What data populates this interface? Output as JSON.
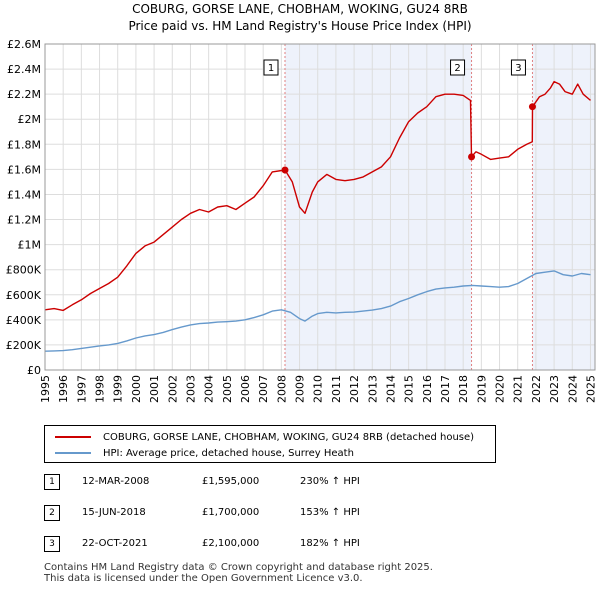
{
  "chart_data": {
    "type": "line",
    "title": "COBURG, GORSE LANE, CHOBHAM, WOKING, GU24 8RB",
    "subtitle": "Price paid vs. HM Land Registry's House Price Index (HPI)",
    "ylim": [
      0,
      2600000
    ],
    "xlim": [
      1995,
      2025.25
    ],
    "y_ticks": [
      {
        "value": 0,
        "label": "£0"
      },
      {
        "value": 200000,
        "label": "£200K"
      },
      {
        "value": 400000,
        "label": "£400K"
      },
      {
        "value": 600000,
        "label": "£600K"
      },
      {
        "value": 800000,
        "label": "£800K"
      },
      {
        "value": 1000000,
        "label": "£1M"
      },
      {
        "value": 1200000,
        "label": "£1.2M"
      },
      {
        "value": 1400000,
        "label": "£1.4M"
      },
      {
        "value": 1600000,
        "label": "£1.6M"
      },
      {
        "value": 1800000,
        "label": "£1.8M"
      },
      {
        "value": 2000000,
        "label": "£2M"
      },
      {
        "value": 2200000,
        "label": "£2.2M"
      },
      {
        "value": 2400000,
        "label": "£2.4M"
      },
      {
        "value": 2600000,
        "label": "£2.6M"
      }
    ],
    "x_ticks": [
      "1995",
      "1996",
      "1997",
      "1998",
      "1999",
      "2000",
      "2001",
      "2002",
      "2003",
      "2004",
      "2005",
      "2006",
      "2007",
      "2008",
      "2009",
      "2010",
      "2011",
      "2012",
      "2013",
      "2014",
      "2015",
      "2016",
      "2017",
      "2018",
      "2019",
      "2020",
      "2021",
      "2022",
      "2023",
      "2024",
      "2025"
    ],
    "series": [
      {
        "name": "COBURG, GORSE LANE, CHOBHAM, WOKING, GU24 8RB (detached house)",
        "color": "#cc0000",
        "x": [
          1995,
          1995.5,
          1996,
          1996.5,
          1997,
          1997.5,
          1998,
          1998.5,
          1999,
          1999.5,
          2000,
          2000.5,
          2001,
          2001.5,
          2002,
          2002.5,
          2003,
          2003.5,
          2004,
          2004.5,
          2005,
          2005.5,
          2006,
          2006.5,
          2007,
          2007.5,
          2008.2,
          2008.6,
          2009.0,
          2009.3,
          2009.7,
          2010,
          2010.5,
          2011,
          2011.5,
          2012,
          2012.5,
          2013,
          2013.5,
          2014,
          2014.5,
          2015,
          2015.5,
          2016,
          2016.5,
          2017,
          2017.5,
          2018.0,
          2018.4,
          2018.46,
          2018.7,
          2019,
          2019.5,
          2020,
          2020.5,
          2021,
          2021.5,
          2021.8,
          2021.81,
          2022.2,
          2022.5,
          2022.8,
          2023,
          2023.3,
          2023.6,
          2024,
          2024.3,
          2024.6,
          2025
        ],
        "values": [
          480000,
          490000,
          475000,
          520000,
          560000,
          610000,
          650000,
          690000,
          740000,
          830000,
          930000,
          990000,
          1020000,
          1080000,
          1140000,
          1200000,
          1250000,
          1280000,
          1260000,
          1300000,
          1310000,
          1280000,
          1330000,
          1380000,
          1470000,
          1580000,
          1595000,
          1500000,
          1300000,
          1250000,
          1420000,
          1500000,
          1560000,
          1520000,
          1510000,
          1520000,
          1540000,
          1580000,
          1620000,
          1700000,
          1850000,
          1980000,
          2050000,
          2100000,
          2180000,
          2200000,
          2200000,
          2190000,
          2150000,
          1700000,
          1740000,
          1720000,
          1680000,
          1690000,
          1700000,
          1760000,
          1800000,
          1820000,
          2100000,
          2180000,
          2200000,
          2250000,
          2300000,
          2280000,
          2220000,
          2200000,
          2280000,
          2200000,
          2150000
        ]
      },
      {
        "name": "HPI: Average price, detached house, Surrey Heath",
        "color": "#6699cc",
        "x": [
          1995,
          1995.5,
          1996,
          1996.5,
          1997,
          1997.5,
          1998,
          1998.5,
          1999,
          1999.5,
          2000,
          2000.5,
          2001,
          2001.5,
          2002,
          2002.5,
          2003,
          2003.5,
          2004,
          2004.5,
          2005,
          2005.5,
          2006,
          2006.5,
          2007,
          2007.5,
          2008,
          2008.5,
          2009,
          2009.3,
          2009.7,
          2010,
          2010.5,
          2011,
          2011.5,
          2012,
          2012.5,
          2013,
          2013.5,
          2014,
          2014.5,
          2015,
          2015.5,
          2016,
          2016.5,
          2017,
          2017.5,
          2018,
          2018.5,
          2019,
          2019.5,
          2020,
          2020.5,
          2021,
          2021.5,
          2022,
          2022.5,
          2023,
          2023.5,
          2024,
          2024.5,
          2025
        ],
        "values": [
          150000,
          152000,
          155000,
          162000,
          172000,
          182000,
          192000,
          200000,
          212000,
          232000,
          255000,
          272000,
          282000,
          300000,
          322000,
          342000,
          360000,
          370000,
          375000,
          382000,
          385000,
          390000,
          400000,
          418000,
          440000,
          470000,
          480000,
          460000,
          410000,
          390000,
          430000,
          450000,
          460000,
          455000,
          460000,
          462000,
          470000,
          478000,
          490000,
          510000,
          545000,
          570000,
          600000,
          625000,
          645000,
          655000,
          660000,
          670000,
          675000,
          670000,
          665000,
          660000,
          665000,
          690000,
          730000,
          770000,
          780000,
          790000,
          760000,
          750000,
          770000,
          760000
        ]
      }
    ],
    "sales": [
      {
        "label": "1",
        "x": 2008.2,
        "price": 1595000
      },
      {
        "label": "2",
        "x": 2018.46,
        "price": 1700000
      },
      {
        "label": "3",
        "x": 2021.81,
        "price": 2100000
      }
    ],
    "shaded_periods": [
      [
        2008.2,
        2018.46
      ],
      [
        2021.81,
        2025.25
      ]
    ]
  },
  "legend": {
    "property": "COBURG, GORSE LANE, CHOBHAM, WOKING, GU24 8RB (detached house)",
    "hpi": "HPI: Average price, detached house, Surrey Heath"
  },
  "transactions": [
    {
      "num": "1",
      "date": "12-MAR-2008",
      "price": "£1,595,000",
      "hpi": "230% ↑ HPI"
    },
    {
      "num": "2",
      "date": "15-JUN-2018",
      "price": "£1,700,000",
      "hpi": "153% ↑ HPI"
    },
    {
      "num": "3",
      "date": "22-OCT-2021",
      "price": "£2,100,000",
      "hpi": "182% ↑ HPI"
    }
  ],
  "footer": {
    "line1": "Contains HM Land Registry data © Crown copyright and database right 2025.",
    "line2": "This data is licensed under the Open Government Licence v3.0."
  },
  "colors": {
    "property": "#cc0000",
    "hpi": "#6699cc",
    "shade": "#eef2fb",
    "grid": "#dddddd",
    "vline": "#e08080"
  }
}
